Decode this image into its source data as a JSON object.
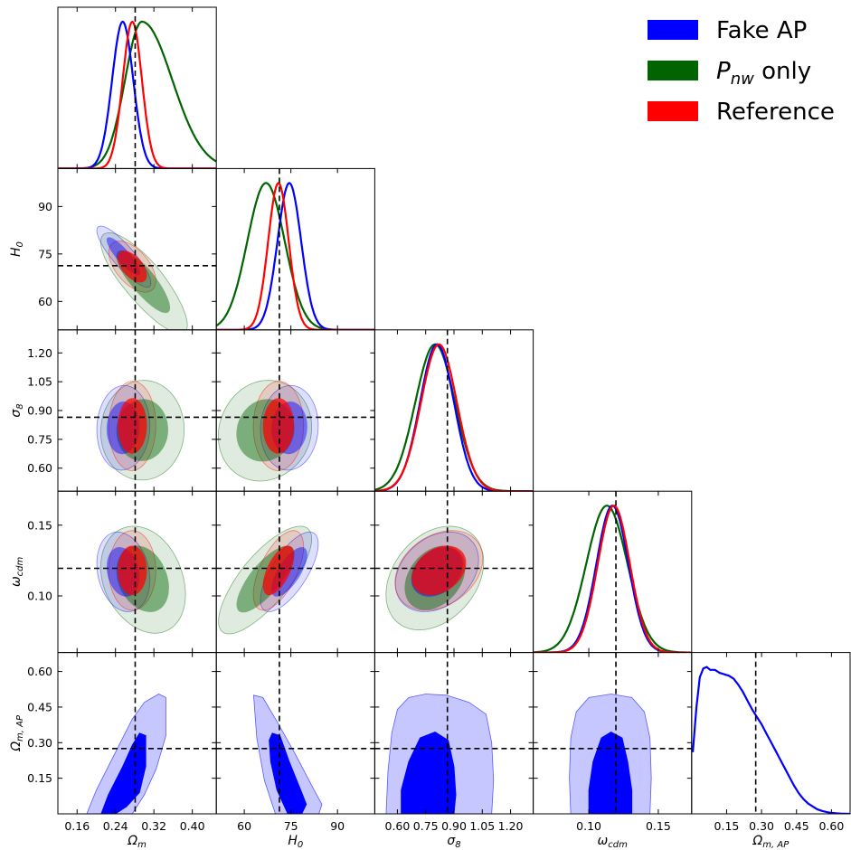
{
  "colors": {
    "fake_ap": "#0000ff",
    "pnw_only": "#006400",
    "reference": "#ff0000",
    "truth_line": "#000000"
  },
  "legend": {
    "items": [
      {
        "key": "fake_ap",
        "label": "Fake AP",
        "color": "#0000ff"
      },
      {
        "key": "pnw_only",
        "label_main": "P",
        "label_sub": "nw",
        "label_rest": " only",
        "color": "#006400"
      },
      {
        "key": "reference",
        "label": "Reference",
        "color": "#ff0000"
      }
    ],
    "placement": "top-right"
  },
  "chart_data": {
    "type": "corner-plot",
    "parameters": [
      {
        "id": "om",
        "label_main": "Ω",
        "label_sub": "m",
        "range": [
          0.12,
          0.45
        ],
        "ticks": [
          0.16,
          0.24,
          0.32,
          0.4
        ],
        "tick_labels": [
          "0.16",
          "0.24",
          "0.32",
          "0.40"
        ],
        "truth": 0.281
      },
      {
        "id": "h0",
        "label_main": "H",
        "label_sub": "0",
        "range": [
          51,
          102
        ],
        "ticks": [
          60,
          75,
          90
        ],
        "tick_labels": [
          "60",
          "75",
          "90"
        ],
        "truth": 71.3
      },
      {
        "id": "s8",
        "label_main": "σ",
        "label_sub": "8",
        "range": [
          0.48,
          1.32
        ],
        "ticks": [
          0.6,
          0.75,
          0.9,
          1.05,
          1.2
        ],
        "tick_labels": [
          "0.60",
          "0.75",
          "0.90",
          "1.05",
          "1.20"
        ],
        "truth": 0.865
      },
      {
        "id": "wc",
        "label_main": "ω",
        "label_sub": "cdm",
        "range": [
          0.06,
          0.174
        ],
        "ticks": [
          0.1,
          0.15
        ],
        "tick_labels": [
          "0.10",
          "0.15"
        ],
        "truth": 0.1195
      },
      {
        "id": "omap",
        "label_main": "Ω",
        "label_sub": "m, AP",
        "range": [
          0.0,
          0.68
        ],
        "ticks": [
          0.15,
          0.3,
          0.45,
          0.6
        ],
        "tick_labels": [
          "0.15",
          "0.30",
          "0.45",
          "0.60"
        ],
        "truth": 0.275
      }
    ],
    "diagonal_ticks_note": "last parameter x axis printed as 0.15, 0.30, 0.45, 0.60",
    "series": [
      {
        "key": "pnw_only",
        "name": "P_nw only",
        "mean": {
          "om": 0.295,
          "h0": 67.0,
          "s8": 0.8,
          "wc": 0.113
        },
        "sd": {
          "om": 0.035,
          "h0": 6.0,
          "s8": 0.105,
          "wc": 0.0148
        },
        "corr": {
          "om-h0": -0.8,
          "om-s8": 0.05,
          "h0-s8": 0.05,
          "om-wc": -0.2,
          "h0-wc": 0.75,
          "s8-wc": 0.3
        },
        "shift": {
          "om-h0": [
            0.015,
            -4.0
          ],
          "om-s8": [
            0.012,
            -0.03
          ],
          "h0-s8": [
            -2.5,
            -0.04
          ],
          "om-wc": [
            0.015,
            -0.008
          ],
          "h0-wc": [
            -1.5,
            -0.008
          ],
          "s8-wc": [
            -0.02,
            -0.004
          ]
        }
      },
      {
        "key": "fake_ap",
        "name": "Fake AP",
        "mean": {
          "om": 0.255,
          "h0": 74.5,
          "s8": 0.81,
          "wc": 0.117
        },
        "sd": {
          "om": 0.022,
          "h0": 3.8,
          "s8": 0.09,
          "wc": 0.0115
        },
        "corr": {
          "om-h0": -0.85,
          "om-s8": 0.05,
          "h0-s8": 0.05,
          "om-wc": -0.2,
          "h0-wc": 0.7,
          "s8-wc": 0.3
        },
        "shift": {
          "om-h0": [
            0.01,
            -1.5
          ],
          "om-s8": [
            0.01,
            0.0
          ],
          "h0-s8": [
            0.0,
            0.0
          ],
          "om-wc": [
            0.01,
            0.0
          ],
          "h0-wc": [
            0.0,
            0.0
          ],
          "s8-wc": [
            0.0,
            0.0
          ]
        }
      },
      {
        "key": "reference",
        "name": "Reference",
        "mean": {
          "om": 0.275,
          "h0": 71.0,
          "s8": 0.82,
          "wc": 0.118
        },
        "sd": {
          "om": 0.02,
          "h0": 3.3,
          "s8": 0.095,
          "wc": 0.0115
        },
        "corr": {
          "om-h0": -0.55,
          "om-s8": 0.02,
          "h0-s8": 0.02,
          "om-wc": 0.0,
          "h0-wc": 0.6,
          "s8-wc": 0.3
        },
        "shift": {
          "om-h0": [
            0.0,
            0.0
          ],
          "om-s8": [
            0.0,
            0.0
          ],
          "h0-s8": [
            0.0,
            0.0
          ],
          "om-wc": [
            0.0,
            0.0
          ],
          "h0-wc": [
            0.0,
            0.0
          ],
          "s8-wc": [
            0.0,
            0.0
          ]
        }
      }
    ],
    "fake_ap_omap_contours": {
      "om": {
        "inner": [
          [
            0.21,
            0.0
          ],
          [
            0.225,
            0.08
          ],
          [
            0.255,
            0.2
          ],
          [
            0.275,
            0.29
          ],
          [
            0.29,
            0.34
          ],
          [
            0.303,
            0.33
          ],
          [
            0.303,
            0.2
          ],
          [
            0.29,
            0.09
          ],
          [
            0.263,
            0.03
          ],
          [
            0.24,
            0.0
          ]
        ],
        "outer": [
          [
            0.18,
            0.0
          ],
          [
            0.2,
            0.1
          ],
          [
            0.24,
            0.26
          ],
          [
            0.275,
            0.4
          ],
          [
            0.3,
            0.47
          ],
          [
            0.33,
            0.505
          ],
          [
            0.345,
            0.49
          ],
          [
            0.345,
            0.33
          ],
          [
            0.325,
            0.19
          ],
          [
            0.3,
            0.08
          ],
          [
            0.275,
            0.0
          ]
        ]
      },
      "h0": {
        "inner": [
          [
            69.0,
            0.34
          ],
          [
            71.5,
            0.33
          ],
          [
            74.5,
            0.22
          ],
          [
            78.5,
            0.09
          ],
          [
            80.0,
            0.04
          ],
          [
            78.5,
            0.0
          ],
          [
            74.0,
            0.0
          ],
          [
            70.5,
            0.1
          ],
          [
            68.5,
            0.22
          ],
          [
            68.0,
            0.31
          ]
        ],
        "outer": [
          [
            63.0,
            0.5
          ],
          [
            66.0,
            0.49
          ],
          [
            70.5,
            0.39
          ],
          [
            76.5,
            0.25
          ],
          [
            82.5,
            0.1
          ],
          [
            85.0,
            0.04
          ],
          [
            84.0,
            0.0
          ],
          [
            70.0,
            0.0
          ],
          [
            66.5,
            0.14
          ],
          [
            64.0,
            0.32
          ]
        ],
        "notes": ""
      },
      "s8": {
        "inner": [
          [
            0.62,
            0.0
          ],
          [
            0.62,
            0.1
          ],
          [
            0.66,
            0.22
          ],
          [
            0.72,
            0.32
          ],
          [
            0.8,
            0.345
          ],
          [
            0.87,
            0.31
          ],
          [
            0.9,
            0.2
          ],
          [
            0.91,
            0.08
          ],
          [
            0.9,
            0.0
          ]
        ],
        "outer": [
          [
            0.54,
            0.0
          ],
          [
            0.55,
            0.18
          ],
          [
            0.57,
            0.34
          ],
          [
            0.6,
            0.44
          ],
          [
            0.66,
            0.49
          ],
          [
            0.75,
            0.505
          ],
          [
            0.86,
            0.5
          ],
          [
            0.98,
            0.47
          ],
          [
            1.07,
            0.42
          ],
          [
            1.1,
            0.3
          ],
          [
            1.11,
            0.14
          ],
          [
            1.1,
            0.0
          ]
        ]
      },
      "wc": {
        "inner": [
          [
            0.1,
            0.0
          ],
          [
            0.1,
            0.1
          ],
          [
            0.103,
            0.22
          ],
          [
            0.109,
            0.32
          ],
          [
            0.116,
            0.345
          ],
          [
            0.124,
            0.32
          ],
          [
            0.128,
            0.22
          ],
          [
            0.131,
            0.1
          ],
          [
            0.131,
            0.0
          ]
        ],
        "outer": [
          [
            0.087,
            0.0
          ],
          [
            0.086,
            0.15
          ],
          [
            0.087,
            0.32
          ],
          [
            0.091,
            0.43
          ],
          [
            0.1,
            0.49
          ],
          [
            0.116,
            0.505
          ],
          [
            0.131,
            0.49
          ],
          [
            0.14,
            0.43
          ],
          [
            0.144,
            0.32
          ],
          [
            0.145,
            0.15
          ],
          [
            0.144,
            0.0
          ]
        ]
      }
    },
    "omap_posterior": {
      "x": [
        0.005,
        0.02,
        0.035,
        0.05,
        0.065,
        0.08,
        0.1,
        0.12,
        0.14,
        0.16,
        0.18,
        0.2,
        0.22,
        0.24,
        0.26,
        0.28,
        0.3,
        0.32,
        0.34,
        0.36,
        0.38,
        0.4,
        0.42,
        0.44,
        0.46,
        0.48,
        0.5,
        0.52,
        0.54,
        0.56,
        0.58,
        0.6,
        0.62,
        0.64,
        0.66,
        0.68
      ],
      "y": [
        0.42,
        0.72,
        0.93,
        0.99,
        1.0,
        0.98,
        0.98,
        0.96,
        0.95,
        0.94,
        0.92,
        0.88,
        0.83,
        0.77,
        0.71,
        0.66,
        0.61,
        0.55,
        0.49,
        0.43,
        0.37,
        0.31,
        0.25,
        0.19,
        0.14,
        0.1,
        0.07,
        0.05,
        0.03,
        0.02,
        0.012,
        0.007,
        0.004,
        0.002,
        0.001,
        0.0
      ]
    }
  }
}
